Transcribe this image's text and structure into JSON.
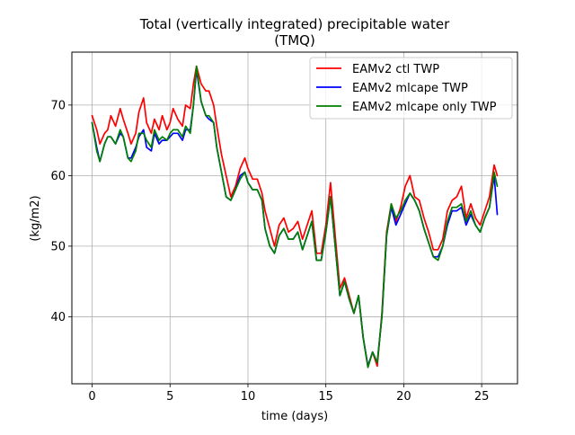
{
  "chart_data": {
    "type": "line",
    "title_line1": "Total (vertically integrated) precipitable water",
    "title_line2": "(TMQ)",
    "xlabel": "time (days)",
    "ylabel": "(kg/m2)",
    "xlim": [
      -1.3,
      27.3
    ],
    "ylim": [
      30.5,
      77.5
    ],
    "x_ticks": [
      0,
      5,
      10,
      15,
      20,
      25
    ],
    "y_ticks": [
      40,
      50,
      60,
      70
    ],
    "x_tick_labels": [
      "0",
      "5",
      "10",
      "15",
      "20",
      "25"
    ],
    "y_tick_labels": [
      "40",
      "50",
      "60",
      "70"
    ],
    "grid": true,
    "legend_position": "top-right",
    "series": [
      {
        "name": "EAMv2 ctl TWP",
        "color": "#ff0000",
        "x": [
          0,
          0.3,
          0.5,
          0.8,
          1.0,
          1.2,
          1.5,
          1.8,
          2.0,
          2.3,
          2.5,
          2.8,
          3.0,
          3.3,
          3.5,
          3.8,
          4.0,
          4.3,
          4.5,
          4.8,
          5.0,
          5.2,
          5.5,
          5.8,
          6.0,
          6.3,
          6.5,
          6.7,
          7.0,
          7.3,
          7.5,
          7.8,
          8.0,
          8.3,
          8.6,
          8.9,
          9.2,
          9.5,
          9.8,
          10.0,
          10.3,
          10.6,
          10.9,
          11.1,
          11.4,
          11.7,
          12.0,
          12.3,
          12.6,
          12.9,
          13.2,
          13.5,
          13.8,
          14.1,
          14.4,
          14.7,
          15.0,
          15.3,
          15.6,
          15.9,
          16.2,
          16.5,
          16.8,
          17.1,
          17.4,
          17.7,
          18.0,
          18.3,
          18.6,
          18.9,
          19.2,
          19.5,
          19.8,
          20.1,
          20.4,
          20.7,
          21.0,
          21.3,
          21.6,
          21.9,
          22.2,
          22.5,
          22.8,
          23.1,
          23.4,
          23.7,
          24.0,
          24.3,
          24.6,
          24.9,
          25.2,
          25.5,
          25.8,
          26.0
        ],
        "y": [
          68.5,
          66.5,
          64.5,
          66.0,
          66.5,
          68.5,
          67.0,
          69.5,
          68.0,
          66.0,
          64.5,
          66.0,
          69.0,
          71.0,
          67.5,
          66.0,
          68.0,
          66.5,
          68.5,
          66.5,
          67.5,
          69.5,
          68.0,
          67.0,
          70.0,
          69.5,
          73.0,
          75.5,
          73.0,
          72.0,
          72.0,
          70.0,
          67.0,
          63.0,
          60.0,
          57.0,
          58.5,
          61.0,
          62.5,
          61.0,
          59.5,
          59.5,
          57.5,
          55.0,
          52.5,
          50.0,
          53.0,
          54.0,
          52.0,
          52.5,
          53.5,
          51.0,
          53.0,
          55.0,
          49.0,
          49.0,
          53.0,
          59.0,
          51.5,
          44.0,
          45.5,
          43.0,
          40.5,
          43.0,
          37.0,
          33.0,
          35.0,
          33.0,
          40.5,
          52.0,
          56.0,
          53.5,
          55.5,
          58.5,
          60.0,
          57.0,
          56.5,
          54.0,
          52.0,
          49.5,
          49.5,
          51.0,
          55.0,
          56.5,
          57.0,
          58.5,
          54.0,
          56.0,
          54.0,
          53.0,
          55.0,
          57.0,
          61.5,
          60.0
        ]
      },
      {
        "name": "EAMv2 mlcape TWP",
        "color": "#0000ff",
        "x": [
          0,
          0.3,
          0.5,
          0.8,
          1.0,
          1.2,
          1.5,
          1.8,
          2.0,
          2.3,
          2.5,
          2.8,
          3.0,
          3.3,
          3.5,
          3.8,
          4.0,
          4.3,
          4.5,
          4.8,
          5.0,
          5.2,
          5.5,
          5.8,
          6.0,
          6.3,
          6.5,
          6.7,
          7.0,
          7.3,
          7.5,
          7.8,
          8.0,
          8.3,
          8.6,
          8.9,
          9.2,
          9.5,
          9.8,
          10.0,
          10.3,
          10.6,
          10.9,
          11.1,
          11.4,
          11.7,
          12.0,
          12.3,
          12.6,
          12.9,
          13.2,
          13.5,
          13.8,
          14.1,
          14.4,
          14.7,
          15.0,
          15.3,
          15.6,
          15.9,
          16.2,
          16.5,
          16.8,
          17.1,
          17.4,
          17.7,
          18.0,
          18.3,
          18.6,
          18.9,
          19.2,
          19.5,
          19.8,
          20.1,
          20.4,
          20.7,
          21.0,
          21.3,
          21.6,
          21.9,
          22.2,
          22.5,
          22.8,
          23.1,
          23.4,
          23.7,
          24.0,
          24.3,
          24.6,
          24.9,
          25.2,
          25.5,
          25.8,
          26.0
        ],
        "y": [
          67.5,
          64.0,
          62.0,
          64.5,
          65.5,
          65.5,
          64.5,
          66.0,
          65.5,
          62.5,
          62.5,
          64.0,
          65.5,
          66.5,
          64.0,
          63.5,
          66.0,
          64.5,
          65.0,
          65.0,
          65.5,
          66.0,
          66.0,
          65.0,
          66.5,
          66.5,
          70.0,
          75.0,
          70.5,
          68.5,
          68.0,
          67.5,
          64.0,
          60.5,
          57.0,
          56.5,
          58.0,
          60.0,
          60.5,
          59.0,
          58.0,
          58.0,
          56.5,
          52.5,
          50.0,
          49.0,
          51.5,
          52.5,
          51.0,
          51.0,
          52.0,
          49.5,
          51.5,
          53.5,
          48.0,
          48.0,
          52.0,
          57.0,
          50.0,
          43.0,
          45.0,
          42.5,
          40.5,
          43.0,
          37.0,
          33.0,
          35.0,
          33.5,
          40.0,
          51.5,
          55.5,
          53.0,
          54.5,
          56.0,
          57.5,
          56.5,
          55.0,
          52.5,
          50.5,
          48.5,
          48.5,
          50.0,
          53.0,
          55.0,
          55.0,
          55.5,
          53.0,
          54.5,
          53.0,
          52.0,
          54.0,
          55.5,
          60.0,
          54.5
        ]
      },
      {
        "name": "EAMv2 mlcape only TWP",
        "color": "#008000",
        "x": [
          0,
          0.3,
          0.5,
          0.8,
          1.0,
          1.2,
          1.5,
          1.8,
          2.0,
          2.3,
          2.5,
          2.8,
          3.0,
          3.3,
          3.5,
          3.8,
          4.0,
          4.3,
          4.5,
          4.8,
          5.0,
          5.2,
          5.5,
          5.8,
          6.0,
          6.3,
          6.5,
          6.7,
          7.0,
          7.3,
          7.5,
          7.8,
          8.0,
          8.3,
          8.6,
          8.9,
          9.2,
          9.5,
          9.8,
          10.0,
          10.3,
          10.6,
          10.9,
          11.1,
          11.4,
          11.7,
          12.0,
          12.3,
          12.6,
          12.9,
          13.2,
          13.5,
          13.8,
          14.1,
          14.4,
          14.7,
          15.0,
          15.3,
          15.6,
          15.9,
          16.2,
          16.5,
          16.8,
          17.1,
          17.4,
          17.7,
          18.0,
          18.3,
          18.6,
          18.9,
          19.2,
          19.5,
          19.8,
          20.1,
          20.4,
          20.7,
          21.0,
          21.3,
          21.6,
          21.9,
          22.2,
          22.5,
          22.8,
          23.1,
          23.4,
          23.7,
          24.0,
          24.3,
          24.6,
          24.9,
          25.2,
          25.5,
          25.8,
          26.0
        ],
        "y": [
          67.5,
          63.5,
          62.0,
          64.5,
          65.5,
          65.5,
          64.5,
          66.5,
          65.5,
          62.5,
          62.0,
          63.5,
          66.0,
          66.0,
          65.0,
          64.0,
          66.5,
          65.0,
          65.5,
          65.0,
          66.0,
          66.5,
          66.5,
          65.5,
          67.0,
          66.0,
          70.0,
          75.5,
          70.5,
          68.5,
          68.5,
          67.5,
          64.0,
          60.5,
          57.0,
          56.5,
          58.0,
          59.5,
          60.5,
          59.0,
          58.0,
          58.0,
          56.5,
          52.5,
          50.0,
          49.0,
          51.5,
          52.5,
          51.0,
          51.0,
          52.0,
          49.5,
          51.5,
          53.5,
          48.0,
          48.0,
          52.0,
          57.0,
          50.0,
          43.0,
          45.0,
          42.5,
          40.5,
          43.0,
          37.0,
          32.8,
          35.0,
          33.5,
          40.0,
          51.5,
          56.0,
          54.0,
          55.0,
          56.5,
          57.5,
          56.5,
          55.0,
          52.5,
          50.5,
          48.5,
          48.0,
          50.0,
          53.5,
          55.5,
          55.5,
          56.0,
          53.5,
          55.0,
          53.0,
          52.0,
          54.0,
          55.5,
          60.5,
          58.5
        ]
      }
    ]
  }
}
